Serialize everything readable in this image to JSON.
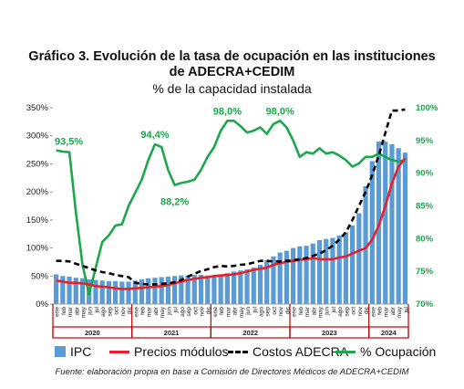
{
  "title_line1": "Gráfico 3. Evolución de la tasa de ocupación en las instituciones",
  "title_line2": "de ADECRA+CEDIM",
  "subtitle": "% de la capacidad instalada",
  "source": "Fuente: elaboración propia en base a Comisión de Directores Médicos de ADECRA+CEDIM",
  "colors": {
    "ipc": "#5b9bd5",
    "precios": "#e8202a",
    "costos": "#000000",
    "ocupacion": "#1aa84b",
    "year_band": "#c00000"
  },
  "chart_data": {
    "type": "bar",
    "months": [
      "ene",
      "feb",
      "mar",
      "abr",
      "may",
      "jun",
      "jul",
      "ago",
      "sep",
      "oct",
      "nov",
      "dic",
      "ene",
      "feb",
      "mar",
      "abr",
      "may",
      "jun",
      "jul",
      "ago",
      "sep",
      "oct",
      "nov",
      "dic",
      "ene",
      "feb",
      "mar",
      "abr",
      "may",
      "jun",
      "jul",
      "ago",
      "sep",
      "oct",
      "nov",
      "dic",
      "ene",
      "feb",
      "mar",
      "abr",
      "may",
      "jun",
      "jul",
      "ago",
      "sep",
      "oct",
      "nov",
      "dic",
      "ene",
      "feb",
      "mar",
      "abr",
      "may",
      "jul"
    ],
    "years": [
      {
        "label": "2020",
        "start": 0,
        "count": 12
      },
      {
        "label": "2021",
        "start": 12,
        "count": 12
      },
      {
        "label": "2022",
        "start": 24,
        "count": 12
      },
      {
        "label": "2023",
        "start": 36,
        "count": 12
      },
      {
        "label": "2024",
        "start": 48,
        "count": 6
      }
    ],
    "y_left": {
      "min": 0,
      "max": 350,
      "step": 50,
      "ticks": [
        "0%",
        "50%",
        "100%",
        "150%",
        "200%",
        "250%",
        "300%",
        "350%"
      ]
    },
    "y_right": {
      "min": 70,
      "max": 100,
      "step": 5,
      "ticks": [
        "70%",
        "75%",
        "80%",
        "85%",
        "90%",
        "95%",
        "100%"
      ]
    },
    "series": [
      {
        "name": "IPC",
        "type": "bar",
        "axis": "left",
        "values": [
          53,
          50,
          49,
          47,
          46,
          44,
          43,
          42,
          41,
          41,
          40,
          40,
          42,
          44,
          46,
          47,
          48,
          49,
          50,
          51,
          51,
          52,
          52,
          51,
          50,
          52,
          55,
          58,
          60,
          62,
          65,
          70,
          78,
          85,
          92,
          95,
          100,
          103,
          104,
          108,
          114,
          116,
          118,
          122,
          128,
          140,
          162,
          210,
          255,
          290,
          290,
          285,
          278,
          270
        ]
      },
      {
        "name": "Precios módulos",
        "type": "line",
        "axis": "left",
        "values": [
          42,
          40,
          38,
          38,
          37,
          35,
          32,
          31,
          30,
          28,
          27,
          27,
          28,
          29,
          30,
          31,
          32,
          34,
          37,
          40,
          43,
          45,
          47,
          48,
          50,
          51,
          52,
          53,
          55,
          58,
          61,
          63,
          65,
          70,
          73,
          75,
          77,
          79,
          80,
          82,
          80,
          80,
          80,
          83,
          85,
          90,
          95,
          100,
          115,
          140,
          175,
          215,
          245,
          260
        ]
      },
      {
        "name": "Costos ADECRA",
        "type": "line",
        "axis": "left",
        "values": [
          77,
          77,
          76,
          72,
          68,
          64,
          60,
          57,
          55,
          52,
          50,
          48,
          38,
          36,
          35,
          35,
          36,
          37,
          39,
          43,
          49,
          54,
          59,
          62,
          66,
          68,
          67,
          68,
          70,
          71,
          74,
          77,
          77,
          76,
          76,
          77,
          78,
          80,
          82,
          86,
          90,
          96,
          104,
          115,
          128,
          150,
          175,
          200,
          230,
          265,
          305,
          345,
          345,
          347
        ]
      },
      {
        "name": "% Ocupación",
        "type": "line",
        "axis": "right",
        "values": [
          93.5,
          93.3,
          93.2,
          84.0,
          76.0,
          71.5,
          75.5,
          79.5,
          80.5,
          82.0,
          82.2,
          85.0,
          87.0,
          89.0,
          92.0,
          94.4,
          94.0,
          90.5,
          88.2,
          88.5,
          88.7,
          89.0,
          90.5,
          92.5,
          94.0,
          96.5,
          98.0,
          98.0,
          97.2,
          96.2,
          96.5,
          97.0,
          96.0,
          97.5,
          98.0,
          97.0,
          95.0,
          92.5,
          93.2,
          93.0,
          93.8,
          93.0,
          93.2,
          92.7,
          92.0,
          91.0,
          91.5,
          92.5,
          92.5,
          93.0,
          92.5,
          92.0,
          91.8,
          92.0
        ]
      }
    ],
    "annotations": [
      {
        "label": "93,5%",
        "series": "% Ocupación",
        "index": 0
      },
      {
        "label": "94,4%",
        "series": "% Ocupación",
        "index": 15
      },
      {
        "label": "88,2%",
        "series": "% Ocupación",
        "index": 18
      },
      {
        "label": "98,0%",
        "series": "% Ocupación",
        "index": 26
      },
      {
        "label": "98,0%",
        "series": "% Ocupación",
        "index": 34
      }
    ],
    "legend": [
      "IPC",
      "Precios módulos",
      "Costos ADECRA",
      "% Ocupación"
    ],
    "legend_position": "bottom",
    "grid": false
  }
}
